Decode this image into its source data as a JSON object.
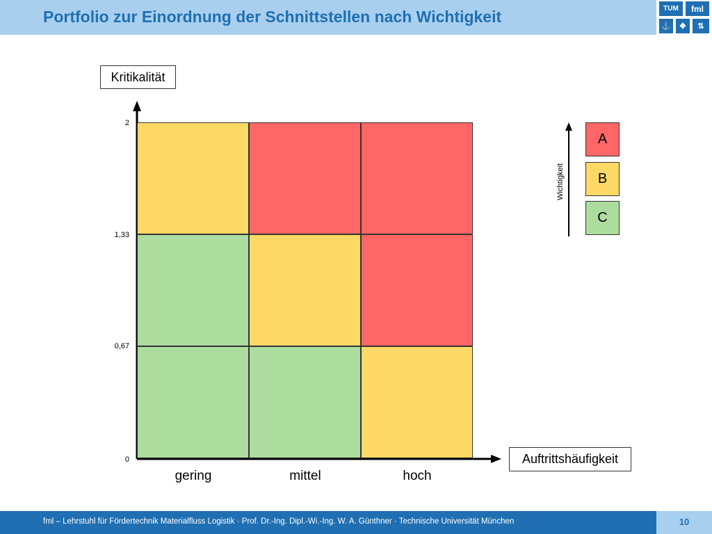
{
  "header": {
    "title": "Portfolio zur Einordnung der Schnittstellen nach Wichtigkeit",
    "logo": {
      "tum": "TUM",
      "fml": "fml",
      "icons": [
        "crane-hook-icon",
        "flow-arrows-icon",
        "conveyor-icon"
      ]
    }
  },
  "chart": {
    "y_axis_label": "Kritikalität",
    "x_axis_label": "Auftrittshäufigkeit",
    "y_ticks": [
      "2",
      "1,33",
      "0,67",
      "0"
    ],
    "x_categories": [
      "gering",
      "mittel",
      "hoch"
    ],
    "matrix_rows_top_to_bottom": [
      [
        "yellow",
        "red",
        "red"
      ],
      [
        "green",
        "yellow",
        "red"
      ],
      [
        "green",
        "green",
        "yellow"
      ]
    ],
    "colors": {
      "red": "#ff6666",
      "yellow": "#ffd966",
      "green": "#addc9f"
    }
  },
  "legend": {
    "title": "Wichtigkeit",
    "items": [
      {
        "label": "A",
        "color": "#ff6666"
      },
      {
        "label": "B",
        "color": "#ffd966"
      },
      {
        "label": "C",
        "color": "#addc9f"
      }
    ]
  },
  "footer": {
    "text": "fml – Lehrstuhl für Fördertechnik Materialfluss Logistik · Prof. Dr.-Ing. Dipl.-Wi.-Ing. W. A. Günthner · Technische Universität München",
    "page_number": "10"
  }
}
